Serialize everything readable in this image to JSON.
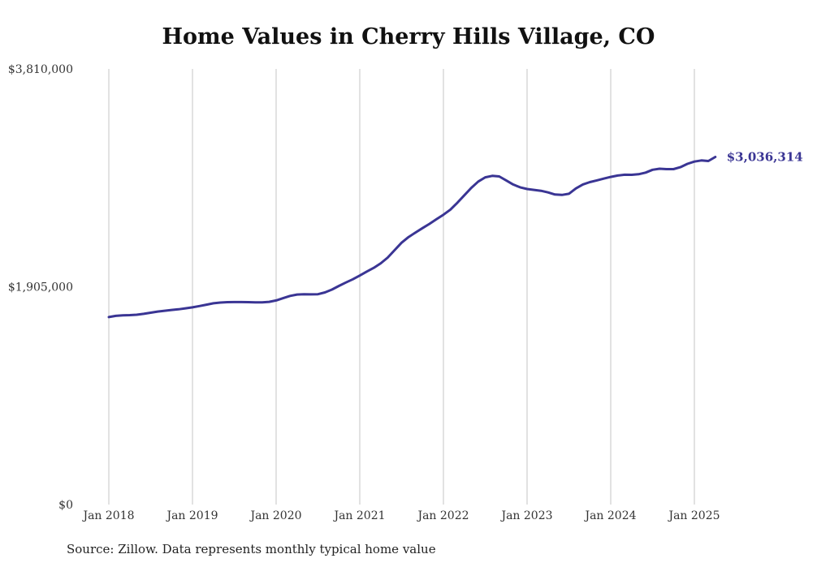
{
  "chart_data": {
    "type": "line",
    "title": "Home Values in Cherry Hills Village, CO",
    "source_note": "Source: Zillow. Data represents monthly typical home value",
    "xlabel": "",
    "ylabel": "",
    "x_tick_labels": [
      "Jan 2018",
      "Jan 2019",
      "Jan 2020",
      "Jan 2021",
      "Jan 2022",
      "Jan 2023",
      "Jan 2024",
      "Jan 2025"
    ],
    "y_tick_labels": [
      "$0",
      "$1,905,000",
      "$3,810,000"
    ],
    "y_ticks": [
      0,
      1905000,
      3810000
    ],
    "ylim": [
      0,
      3810000
    ],
    "grid": "vertical",
    "line_color": "#3a3594",
    "end_label": "$3,036,314",
    "series": [
      {
        "points": [
          [
            "2018-01",
            1640000
          ],
          [
            "2018-02",
            1650000
          ],
          [
            "2018-03",
            1655000
          ],
          [
            "2018-04",
            1657000
          ],
          [
            "2018-05",
            1660000
          ],
          [
            "2018-06",
            1668000
          ],
          [
            "2018-07",
            1678000
          ],
          [
            "2018-08",
            1688000
          ],
          [
            "2018-09",
            1695000
          ],
          [
            "2018-10",
            1702000
          ],
          [
            "2018-11",
            1708000
          ],
          [
            "2018-12",
            1716000
          ],
          [
            "2019-01",
            1725000
          ],
          [
            "2019-02",
            1736000
          ],
          [
            "2019-03",
            1748000
          ],
          [
            "2019-04",
            1760000
          ],
          [
            "2019-05",
            1767000
          ],
          [
            "2019-06",
            1770000
          ],
          [
            "2019-07",
            1771000
          ],
          [
            "2019-08",
            1771000
          ],
          [
            "2019-09",
            1770000
          ],
          [
            "2019-10",
            1768000
          ],
          [
            "2019-11",
            1768000
          ],
          [
            "2019-12",
            1773000
          ],
          [
            "2020-01",
            1785000
          ],
          [
            "2020-02",
            1805000
          ],
          [
            "2020-03",
            1825000
          ],
          [
            "2020-04",
            1837000
          ],
          [
            "2020-05",
            1840000
          ],
          [
            "2020-06",
            1838000
          ],
          [
            "2020-07",
            1840000
          ],
          [
            "2020-08",
            1855000
          ],
          [
            "2020-09",
            1880000
          ],
          [
            "2020-10",
            1912000
          ],
          [
            "2020-11",
            1942000
          ],
          [
            "2020-12",
            1970000
          ],
          [
            "2021-01",
            2003000
          ],
          [
            "2021-02",
            2038000
          ],
          [
            "2021-03",
            2070000
          ],
          [
            "2021-04",
            2110000
          ],
          [
            "2021-05",
            2160000
          ],
          [
            "2021-06",
            2225000
          ],
          [
            "2021-07",
            2290000
          ],
          [
            "2021-08",
            2340000
          ],
          [
            "2021-09",
            2380000
          ],
          [
            "2021-10",
            2418000
          ],
          [
            "2021-11",
            2455000
          ],
          [
            "2021-12",
            2495000
          ],
          [
            "2022-01",
            2535000
          ],
          [
            "2022-02",
            2580000
          ],
          [
            "2022-03",
            2640000
          ],
          [
            "2022-04",
            2705000
          ],
          [
            "2022-05",
            2770000
          ],
          [
            "2022-06",
            2825000
          ],
          [
            "2022-07",
            2862000
          ],
          [
            "2022-08",
            2875000
          ],
          [
            "2022-09",
            2870000
          ],
          [
            "2022-10",
            2835000
          ],
          [
            "2022-11",
            2800000
          ],
          [
            "2022-12",
            2775000
          ],
          [
            "2023-01",
            2760000
          ],
          [
            "2023-02",
            2752000
          ],
          [
            "2023-03",
            2744000
          ],
          [
            "2023-04",
            2730000
          ],
          [
            "2023-05",
            2712000
          ],
          [
            "2023-06",
            2708000
          ],
          [
            "2023-07",
            2718000
          ],
          [
            "2023-08",
            2765000
          ],
          [
            "2023-09",
            2800000
          ],
          [
            "2023-10",
            2820000
          ],
          [
            "2023-11",
            2835000
          ],
          [
            "2023-12",
            2851000
          ],
          [
            "2024-01",
            2866000
          ],
          [
            "2024-02",
            2878000
          ],
          [
            "2024-03",
            2885000
          ],
          [
            "2024-04",
            2884000
          ],
          [
            "2024-05",
            2889000
          ],
          [
            "2024-06",
            2903000
          ],
          [
            "2024-07",
            2928000
          ],
          [
            "2024-08",
            2937000
          ],
          [
            "2024-09",
            2934000
          ],
          [
            "2024-10",
            2934000
          ],
          [
            "2024-11",
            2951000
          ],
          [
            "2024-12",
            2980000
          ],
          [
            "2025-01",
            3000000
          ],
          [
            "2025-02",
            3010000
          ],
          [
            "2025-03",
            3005000
          ],
          [
            "2025-04",
            3040000
          ]
        ]
      }
    ]
  }
}
